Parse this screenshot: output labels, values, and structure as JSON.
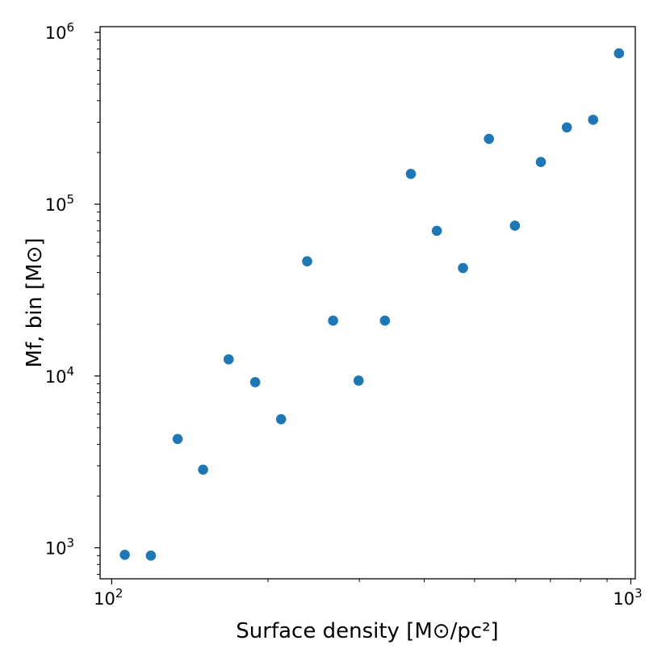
{
  "chart_data": {
    "type": "scatter",
    "title": "",
    "xlabel": "Surface density [M⊙/pc²]",
    "ylabel": "Mf, bin [M⊙]",
    "xscale": "log",
    "yscale": "log",
    "xlim": [
      95,
      1020
    ],
    "ylim": [
      660,
      1080000
    ],
    "grid": false,
    "x_ticks": [
      {
        "value": 100,
        "base": "10",
        "exp": "2"
      },
      {
        "value": 1000,
        "base": "10",
        "exp": "3"
      }
    ],
    "y_ticks": [
      {
        "value": 1000,
        "base": "10",
        "exp": "3"
      },
      {
        "value": 10000,
        "base": "10",
        "exp": "4"
      },
      {
        "value": 100000,
        "base": "10",
        "exp": "5"
      },
      {
        "value": 1000000,
        "base": "10",
        "exp": "6"
      }
    ],
    "marker_color": "#1f77b4",
    "series": [
      {
        "points": [
          {
            "x": 106,
            "y": 910
          },
          {
            "x": 119,
            "y": 900
          },
          {
            "x": 134,
            "y": 4300
          },
          {
            "x": 150,
            "y": 2850
          },
          {
            "x": 168,
            "y": 12500
          },
          {
            "x": 189,
            "y": 9200
          },
          {
            "x": 212,
            "y": 5600
          },
          {
            "x": 238,
            "y": 46500
          },
          {
            "x": 267,
            "y": 21000
          },
          {
            "x": 299,
            "y": 9400
          },
          {
            "x": 336,
            "y": 21000
          },
          {
            "x": 377,
            "y": 150000
          },
          {
            "x": 423,
            "y": 70000
          },
          {
            "x": 475,
            "y": 42500
          },
          {
            "x": 533,
            "y": 240000
          },
          {
            "x": 598,
            "y": 75000
          },
          {
            "x": 671,
            "y": 176000
          },
          {
            "x": 753,
            "y": 280000
          },
          {
            "x": 846,
            "y": 310000
          },
          {
            "x": 949,
            "y": 755000
          }
        ]
      }
    ]
  }
}
